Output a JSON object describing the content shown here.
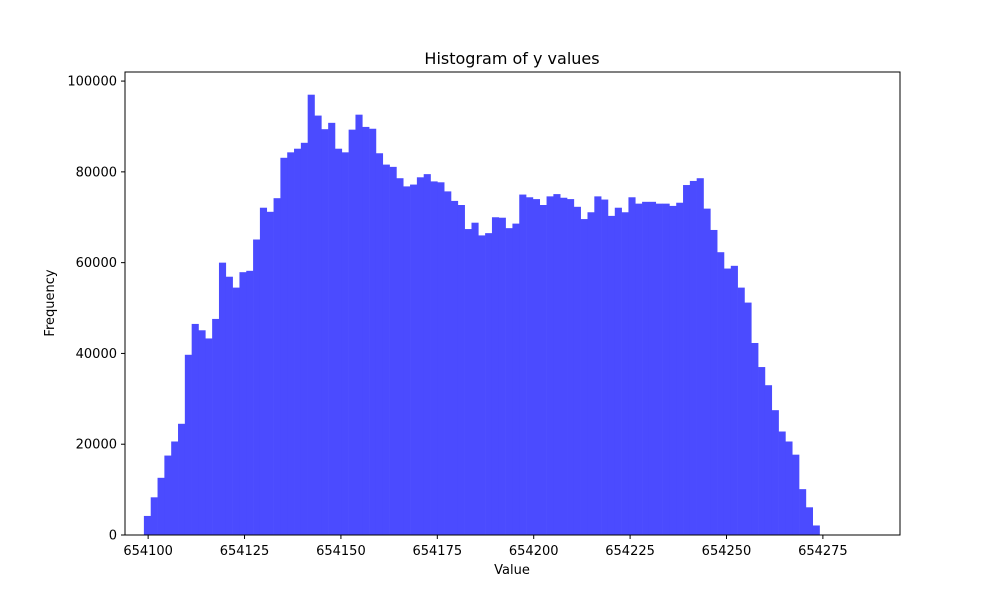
{
  "chart_data": {
    "type": "bar",
    "title": "Histogram of y values",
    "xlabel": "Value",
    "ylabel": "Frequency",
    "xlim": [
      654094,
      654295
    ],
    "ylim": [
      0,
      102000
    ],
    "xticks": [
      654100,
      654125,
      654150,
      654175,
      654200,
      654225,
      654250,
      654275
    ],
    "xtick_labels": [
      "654100",
      "654125",
      "654150",
      "654175",
      "654200",
      "654225",
      "654250",
      "654275"
    ],
    "yticks": [
      0,
      20000,
      40000,
      60000,
      80000,
      100000
    ],
    "ytick_labels": [
      "0",
      "20000",
      "40000",
      "60000",
      "80000",
      "100000"
    ],
    "grid": false,
    "bar_color": "#4b4bff",
    "bin_start": 654098.9,
    "bin_width": 1.77,
    "values": [
      4200,
      8300,
      12600,
      17500,
      20600,
      24500,
      39700,
      46500,
      45100,
      43300,
      47600,
      60000,
      56900,
      54500,
      57900,
      58200,
      65100,
      72100,
      71200,
      74200,
      83100,
      84300,
      85100,
      86400,
      97000,
      92400,
      89400,
      90800,
      85100,
      84300,
      89300,
      92600,
      89900,
      89500,
      84100,
      81600,
      81100,
      78600,
      76800,
      77200,
      78800,
      79500,
      77900,
      77700,
      75700,
      73600,
      72700,
      67400,
      68800,
      66000,
      66500,
      70000,
      69900,
      67600,
      68600,
      75000,
      74400,
      74000,
      72700,
      74600,
      75100,
      74300,
      74000,
      72300,
      69600,
      71100,
      74600,
      73900,
      70300,
      72100,
      71100,
      74400,
      73000,
      73400,
      73400,
      73000,
      73000,
      72500,
      73200,
      77100,
      78000,
      78600,
      71900,
      67200,
      62300,
      58700,
      59300,
      54500,
      51200,
      42300,
      37000,
      33000,
      27500,
      22800,
      20600,
      17700,
      10100,
      6100,
      2100
    ]
  }
}
